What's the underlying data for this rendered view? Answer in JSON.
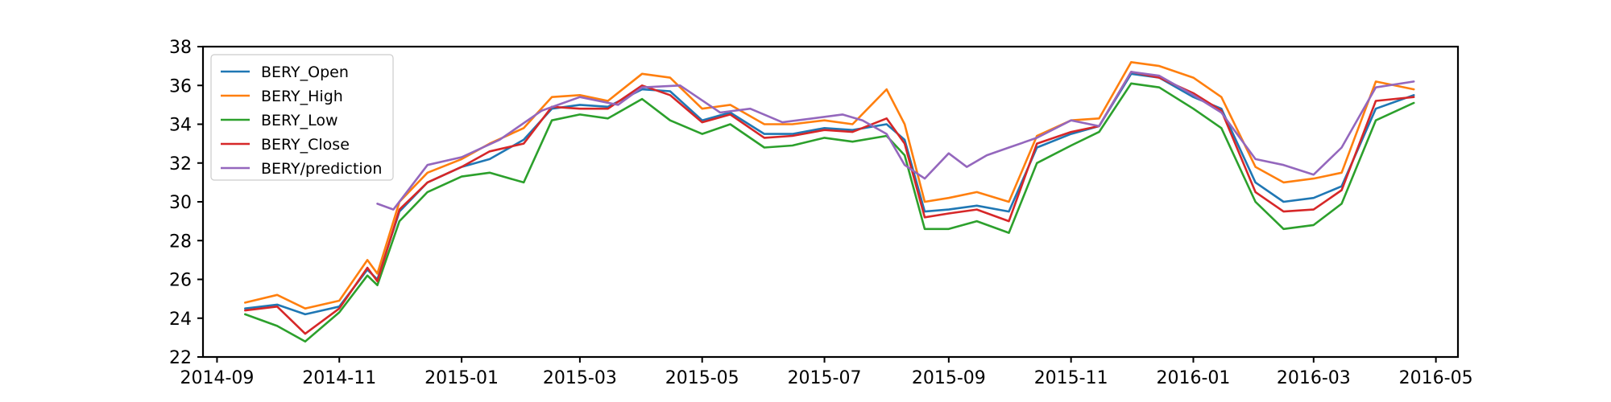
{
  "chart_data": {
    "type": "line",
    "xlabel": "",
    "ylabel": "",
    "ylim": [
      22,
      38
    ],
    "xlim": [
      "2014-08-25",
      "2016-05-12"
    ],
    "grid": false,
    "legend_position": "top-left",
    "yticks": [
      22,
      24,
      26,
      28,
      30,
      32,
      34,
      36,
      38
    ],
    "xticks": [
      "2014-09",
      "2014-11",
      "2015-01",
      "2015-03",
      "2015-05",
      "2015-07",
      "2015-09",
      "2015-11",
      "2016-01",
      "2016-03",
      "2016-05"
    ],
    "series": [
      {
        "name": "BERY_Open",
        "color": "#1f77b4",
        "x": [
          "2014-09-15",
          "2014-10-01",
          "2014-10-15",
          "2014-11-01",
          "2014-11-15",
          "2014-11-20",
          "2014-12-01",
          "2014-12-15",
          "2015-01-01",
          "2015-01-15",
          "2015-02-01",
          "2015-02-15",
          "2015-03-01",
          "2015-03-15",
          "2015-04-01",
          "2015-04-15",
          "2015-05-01",
          "2015-05-15",
          "2015-06-01",
          "2015-06-15",
          "2015-07-01",
          "2015-07-15",
          "2015-08-01",
          "2015-08-10",
          "2015-08-20",
          "2015-09-01",
          "2015-09-15",
          "2015-10-01",
          "2015-10-15",
          "2015-11-01",
          "2015-11-15",
          "2015-12-01",
          "2015-12-15",
          "2016-01-01",
          "2016-01-15",
          "2016-02-01",
          "2016-02-15",
          "2016-03-01",
          "2016-03-15",
          "2016-04-01",
          "2016-04-20"
        ],
        "values": [
          24.5,
          24.7,
          24.2,
          24.6,
          26.5,
          26.0,
          29.5,
          31.0,
          31.8,
          32.2,
          33.2,
          34.8,
          35.0,
          34.9,
          35.8,
          35.7,
          34.2,
          34.6,
          33.5,
          33.5,
          33.8,
          33.7,
          34.0,
          33.2,
          29.5,
          29.6,
          29.8,
          29.5,
          32.8,
          33.5,
          33.9,
          36.6,
          36.4,
          35.4,
          34.8,
          31.0,
          30.0,
          30.2,
          30.8,
          34.8,
          35.5
        ]
      },
      {
        "name": "BERY_High",
        "color": "#ff7f0e",
        "x": [
          "2014-09-15",
          "2014-10-01",
          "2014-10-15",
          "2014-11-01",
          "2014-11-15",
          "2014-11-20",
          "2014-12-01",
          "2014-12-15",
          "2015-01-01",
          "2015-01-15",
          "2015-02-01",
          "2015-02-15",
          "2015-03-01",
          "2015-03-15",
          "2015-04-01",
          "2015-04-15",
          "2015-05-01",
          "2015-05-15",
          "2015-06-01",
          "2015-06-15",
          "2015-07-01",
          "2015-07-15",
          "2015-08-01",
          "2015-08-10",
          "2015-08-20",
          "2015-09-01",
          "2015-09-15",
          "2015-10-01",
          "2015-10-15",
          "2015-11-01",
          "2015-11-15",
          "2015-12-01",
          "2015-12-15",
          "2016-01-01",
          "2016-01-15",
          "2016-02-01",
          "2016-02-15",
          "2016-03-01",
          "2016-03-15",
          "2016-04-01",
          "2016-04-20"
        ],
        "values": [
          24.8,
          25.2,
          24.5,
          24.9,
          27.0,
          26.3,
          30.0,
          31.5,
          32.2,
          33.0,
          33.8,
          35.4,
          35.5,
          35.2,
          36.6,
          36.4,
          34.8,
          35.0,
          34.0,
          34.0,
          34.2,
          34.0,
          35.8,
          34.0,
          30.0,
          30.2,
          30.5,
          30.0,
          33.4,
          34.2,
          34.3,
          37.2,
          37.0,
          36.4,
          35.4,
          31.8,
          31.0,
          31.2,
          31.5,
          36.2,
          35.8
        ]
      },
      {
        "name": "BERY_Low",
        "color": "#2ca02c",
        "x": [
          "2014-09-15",
          "2014-10-01",
          "2014-10-15",
          "2014-11-01",
          "2014-11-15",
          "2014-11-20",
          "2014-12-01",
          "2014-12-15",
          "2015-01-01",
          "2015-01-15",
          "2015-02-01",
          "2015-02-15",
          "2015-03-01",
          "2015-03-15",
          "2015-04-01",
          "2015-04-15",
          "2015-05-01",
          "2015-05-15",
          "2015-06-01",
          "2015-06-15",
          "2015-07-01",
          "2015-07-15",
          "2015-08-01",
          "2015-08-10",
          "2015-08-20",
          "2015-09-01",
          "2015-09-15",
          "2015-10-01",
          "2015-10-15",
          "2015-11-01",
          "2015-11-15",
          "2015-12-01",
          "2015-12-15",
          "2016-01-01",
          "2016-01-15",
          "2016-02-01",
          "2016-02-15",
          "2016-03-01",
          "2016-03-15",
          "2016-04-01",
          "2016-04-20"
        ],
        "values": [
          24.2,
          23.6,
          22.8,
          24.3,
          26.2,
          25.7,
          29.0,
          30.5,
          31.3,
          31.5,
          31.0,
          34.2,
          34.5,
          34.3,
          35.3,
          34.2,
          33.5,
          34.0,
          32.8,
          32.9,
          33.3,
          33.1,
          33.4,
          32.4,
          28.6,
          28.6,
          29.0,
          28.4,
          32.0,
          32.9,
          33.6,
          36.1,
          35.9,
          34.8,
          33.8,
          30.0,
          28.6,
          28.8,
          29.9,
          34.2,
          35.1
        ]
      },
      {
        "name": "BERY_Close",
        "color": "#d62728",
        "x": [
          "2014-09-15",
          "2014-10-01",
          "2014-10-15",
          "2014-11-01",
          "2014-11-15",
          "2014-11-20",
          "2014-12-01",
          "2014-12-15",
          "2015-01-01",
          "2015-01-15",
          "2015-02-01",
          "2015-02-15",
          "2015-03-01",
          "2015-03-15",
          "2015-04-01",
          "2015-04-15",
          "2015-05-01",
          "2015-05-15",
          "2015-06-01",
          "2015-06-15",
          "2015-07-01",
          "2015-07-15",
          "2015-08-01",
          "2015-08-10",
          "2015-08-20",
          "2015-09-01",
          "2015-09-15",
          "2015-10-01",
          "2015-10-15",
          "2015-11-01",
          "2015-11-15",
          "2015-12-01",
          "2015-12-15",
          "2016-01-01",
          "2016-01-15",
          "2016-02-01",
          "2016-02-15",
          "2016-03-01",
          "2016-03-15",
          "2016-04-01",
          "2016-04-20"
        ],
        "values": [
          24.4,
          24.6,
          23.2,
          24.5,
          26.6,
          25.9,
          29.6,
          31.0,
          31.8,
          32.6,
          33.0,
          34.9,
          34.8,
          34.8,
          36.0,
          35.5,
          34.1,
          34.5,
          33.3,
          33.4,
          33.7,
          33.6,
          34.3,
          33.0,
          29.2,
          29.4,
          29.6,
          29.0,
          33.0,
          33.6,
          33.9,
          36.7,
          36.4,
          35.6,
          34.7,
          30.5,
          29.5,
          29.6,
          30.6,
          35.2,
          35.4
        ]
      },
      {
        "name": "BERY/prediction",
        "color": "#9467bd",
        "x": [
          "2014-11-20",
          "2014-11-28",
          "2014-12-15",
          "2015-01-01",
          "2015-01-20",
          "2015-02-10",
          "2015-03-01",
          "2015-03-20",
          "2015-04-01",
          "2015-04-20",
          "2015-05-10",
          "2015-05-25",
          "2015-06-10",
          "2015-06-25",
          "2015-07-10",
          "2015-07-20",
          "2015-08-01",
          "2015-08-10",
          "2015-08-20",
          "2015-09-01",
          "2015-09-10",
          "2015-09-20",
          "2015-10-01",
          "2015-10-15",
          "2015-11-01",
          "2015-11-15",
          "2015-12-01",
          "2015-12-15",
          "2016-01-01",
          "2016-01-15",
          "2016-02-01",
          "2016-02-15",
          "2016-03-01",
          "2016-03-15",
          "2016-04-01",
          "2016-04-20"
        ],
        "values": [
          29.9,
          29.6,
          31.9,
          32.3,
          33.2,
          34.7,
          35.4,
          35.0,
          35.9,
          36.0,
          34.6,
          34.8,
          34.1,
          34.3,
          34.5,
          34.2,
          33.5,
          31.9,
          31.2,
          32.5,
          31.8,
          32.4,
          32.8,
          33.3,
          34.2,
          33.9,
          36.7,
          36.5,
          35.5,
          34.6,
          32.2,
          31.9,
          31.4,
          32.8,
          35.9,
          36.2
        ]
      }
    ]
  }
}
